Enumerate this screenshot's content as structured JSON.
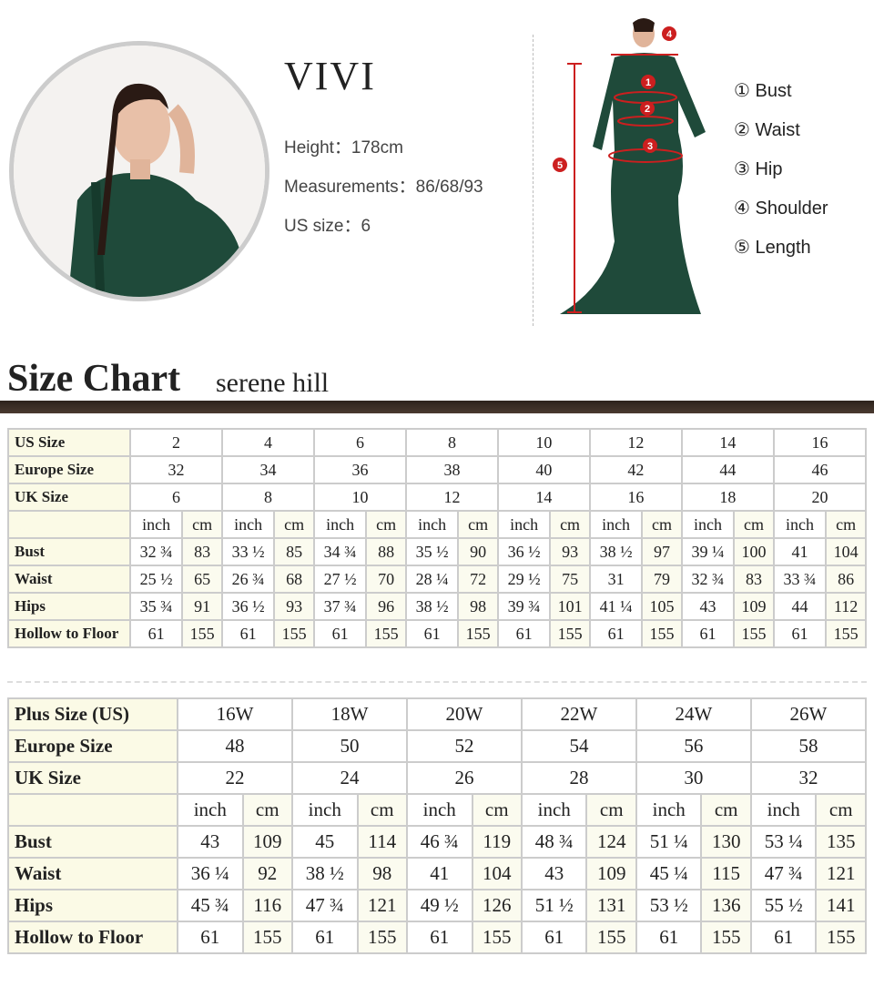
{
  "model": {
    "name": "VIVI",
    "height": "Height：178cm",
    "measurements": "Measurements：86/68/93",
    "us_size": "US size：6"
  },
  "legend": [
    "① Bust",
    "② Waist",
    "③ Hip",
    "④ Shoulder",
    "⑤ Length"
  ],
  "figure_markers": [
    "1",
    "2",
    "3",
    "4",
    "5"
  ],
  "colors": {
    "dress": "#1f4a3a",
    "marker": "#cc1f1f",
    "title_bar": "#2c221c",
    "label_bg": "#fbfae6"
  },
  "size_chart": {
    "title": "Size Chart",
    "subtitle": "serene hill"
  },
  "standard": {
    "header_rows": [
      {
        "label": "US Size",
        "values": [
          "2",
          "4",
          "6",
          "8",
          "10",
          "12",
          "14",
          "16"
        ]
      },
      {
        "label": "Europe Size",
        "values": [
          "32",
          "34",
          "36",
          "38",
          "40",
          "42",
          "44",
          "46"
        ]
      },
      {
        "label": "UK Size",
        "values": [
          "6",
          "8",
          "10",
          "12",
          "14",
          "16",
          "18",
          "20"
        ]
      }
    ],
    "units": [
      "inch",
      "cm"
    ],
    "rows": [
      {
        "label": "Bust",
        "values": [
          "32 ¾",
          "83",
          "33 ½",
          "85",
          "34 ¾",
          "88",
          "35 ½",
          "90",
          "36 ½",
          "93",
          "38 ½",
          "97",
          "39 ¼",
          "100",
          "41",
          "104"
        ]
      },
      {
        "label": "Waist",
        "values": [
          "25 ½",
          "65",
          "26 ¾",
          "68",
          "27 ½",
          "70",
          "28 ¼",
          "72",
          "29 ½",
          "75",
          "31",
          "79",
          "32 ¾",
          "83",
          "33 ¾",
          "86"
        ]
      },
      {
        "label": "Hips",
        "values": [
          "35 ¾",
          "91",
          "36 ½",
          "93",
          "37 ¾",
          "96",
          "38 ½",
          "98",
          "39 ¾",
          "101",
          "41 ¼",
          "105",
          "43",
          "109",
          "44",
          "112"
        ]
      },
      {
        "label": "Hollow to Floor",
        "values": [
          "61",
          "155",
          "61",
          "155",
          "61",
          "155",
          "61",
          "155",
          "61",
          "155",
          "61",
          "155",
          "61",
          "155",
          "61",
          "155"
        ]
      }
    ]
  },
  "plus": {
    "header_rows": [
      {
        "label": "Plus Size (US)",
        "values": [
          "16W",
          "18W",
          "20W",
          "22W",
          "24W",
          "26W"
        ]
      },
      {
        "label": "Europe Size",
        "values": [
          "48",
          "50",
          "52",
          "54",
          "56",
          "58"
        ]
      },
      {
        "label": "UK Size",
        "values": [
          "22",
          "24",
          "26",
          "28",
          "30",
          "32"
        ]
      }
    ],
    "units": [
      "inch",
      "cm"
    ],
    "rows": [
      {
        "label": "Bust",
        "values": [
          "43",
          "109",
          "45",
          "114",
          "46 ¾",
          "119",
          "48 ¾",
          "124",
          "51 ¼",
          "130",
          "53 ¼",
          "135"
        ]
      },
      {
        "label": "Waist",
        "values": [
          "36 ¼",
          "92",
          "38 ½",
          "98",
          "41",
          "104",
          "43",
          "109",
          "45 ¼",
          "115",
          "47 ¾",
          "121"
        ]
      },
      {
        "label": "Hips",
        "values": [
          "45 ¾",
          "116",
          "47 ¾",
          "121",
          "49 ½",
          "126",
          "51 ½",
          "131",
          "53 ½",
          "136",
          "55 ½",
          "141"
        ]
      },
      {
        "label": "Hollow to Floor",
        "values": [
          "61",
          "155",
          "61",
          "155",
          "61",
          "155",
          "61",
          "155",
          "61",
          "155",
          "61",
          "155"
        ]
      }
    ]
  }
}
